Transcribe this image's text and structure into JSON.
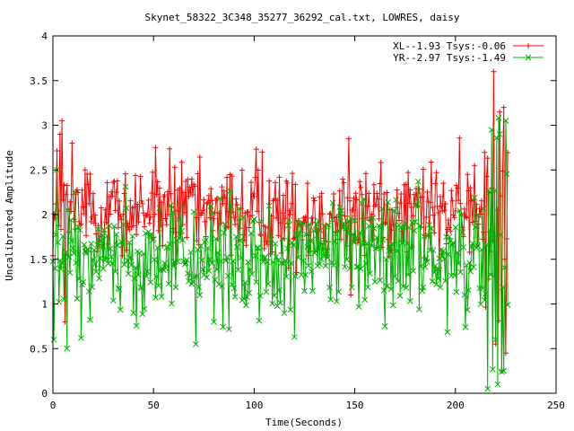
{
  "chart_data": {
    "type": "line",
    "title": "Skynet_58322_3C348_35277_36292_cal.txt, LOWRES, daisy",
    "xlabel": "Time(Seconds)",
    "ylabel": "Uncalibrated Amplitude",
    "xlim": [
      0,
      250
    ],
    "ylim": [
      0,
      4
    ],
    "xticks": [
      0,
      50,
      100,
      150,
      200,
      250
    ],
    "yticks": [
      0,
      0.5,
      1,
      1.5,
      2,
      2.5,
      3,
      3.5,
      4
    ],
    "x_tick_labels": [
      "0",
      "50",
      "100",
      "150",
      "200",
      "250"
    ],
    "y_tick_labels": [
      "0",
      "0.5",
      "1",
      "1.5",
      "2",
      "2.5",
      "3",
      "3.5",
      "4"
    ],
    "grid": false,
    "legend_position": "top-right",
    "sampling": {
      "x_start": 0,
      "x_end": 226,
      "x_step": 0.5
    },
    "series": [
      {
        "name": "XL--1.93 Tsys:-0.06",
        "color": "#ff0000",
        "marker": "plus",
        "baseline": 2.0,
        "spread": 0.25,
        "features": [
          {
            "x": 3.5,
            "y": 2.9
          },
          {
            "x": 4.5,
            "y": 3.05
          },
          {
            "x": 6,
            "y": 0.8
          },
          {
            "x": 9.5,
            "y": 2.8
          },
          {
            "x": 51,
            "y": 2.75
          },
          {
            "x": 104,
            "y": 2.7
          },
          {
            "x": 147,
            "y": 2.85
          },
          {
            "x": 148,
            "y": 1.1
          },
          {
            "x": 206,
            "y": 2.45
          },
          {
            "x": 219,
            "y": 3.6
          },
          {
            "x": 220,
            "y": 0.55
          },
          {
            "x": 222,
            "y": 3.15
          },
          {
            "x": 223,
            "y": 0.25
          },
          {
            "x": 224,
            "y": 3.2
          },
          {
            "x": 225,
            "y": 0.45
          }
        ]
      },
      {
        "name": "YR--2.97 Tsys:-1.49",
        "color": "#00b000",
        "marker": "x",
        "baseline": 1.55,
        "spread": 0.3,
        "features": [
          {
            "x": 0.5,
            "y": 0.6
          },
          {
            "x": 2,
            "y": 2.5
          },
          {
            "x": 7,
            "y": 0.5
          },
          {
            "x": 40,
            "y": 0.9
          },
          {
            "x": 80,
            "y": 0.8
          },
          {
            "x": 120,
            "y": 0.63
          },
          {
            "x": 165,
            "y": 0.75
          },
          {
            "x": 216,
            "y": 0.05
          },
          {
            "x": 218,
            "y": 2.95
          },
          {
            "x": 220,
            "y": 0.6
          },
          {
            "x": 221,
            "y": 0.1
          },
          {
            "x": 222,
            "y": 2.9
          },
          {
            "x": 224,
            "y": 0.25
          },
          {
            "x": 225,
            "y": 3.05
          }
        ]
      }
    ]
  }
}
